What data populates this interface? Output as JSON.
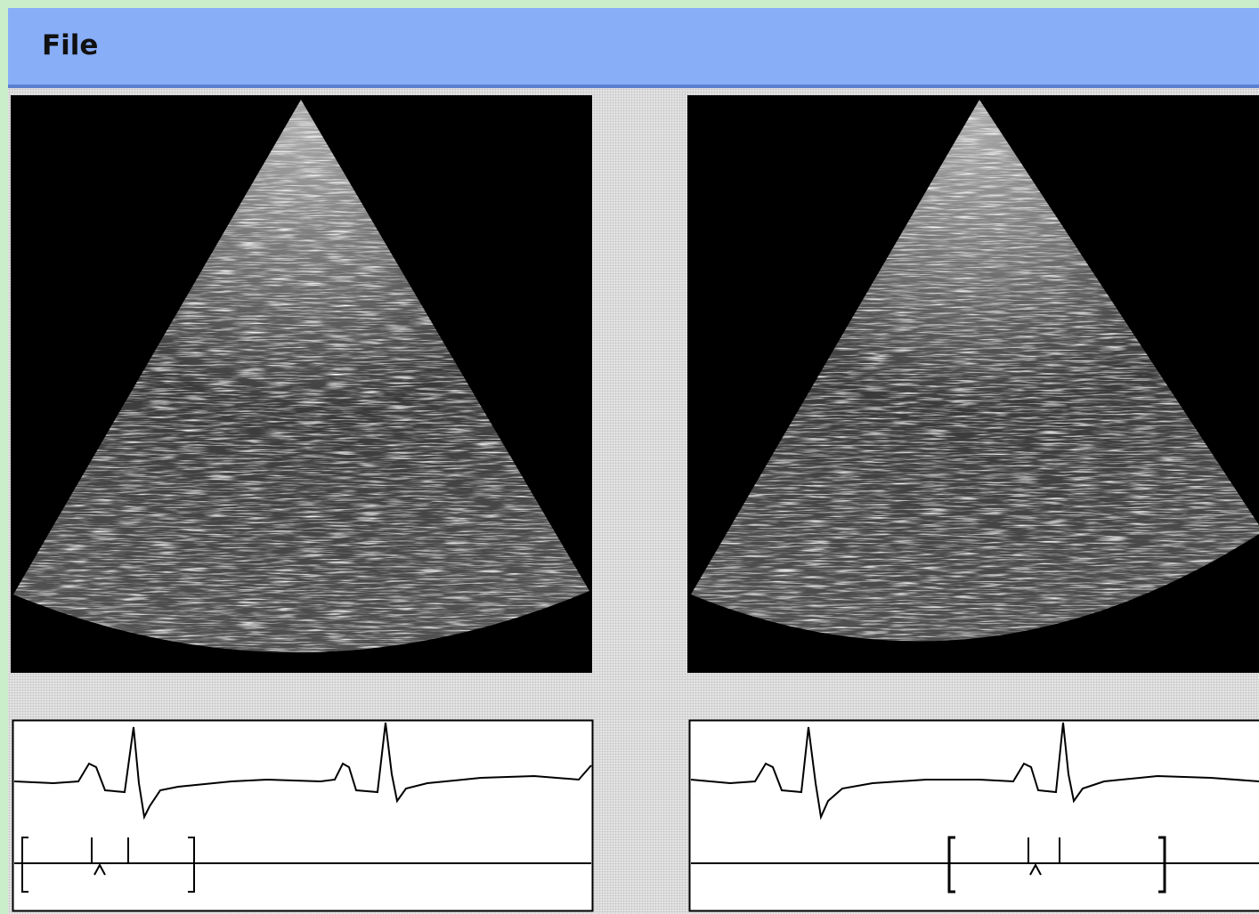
{
  "menu": {
    "items": [
      "File"
    ]
  }
}
